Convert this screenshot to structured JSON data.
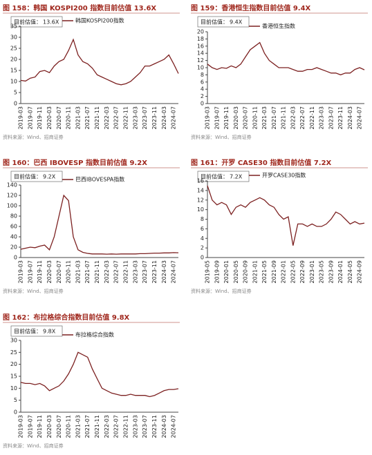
{
  "chart_data": [
    {
      "type": "line",
      "title": "图 158：韩国 KOSPI200 指数目前估值 13.6X",
      "annotation_label": "目前估值：",
      "annotation_value": "13.6X",
      "source": "资料来源：Wind、招商证券",
      "categories": [
        "2019-03",
        null,
        "2019-07",
        null,
        "2019-11",
        null,
        "2020-03",
        null,
        "2020-07",
        null,
        "2020-11",
        null,
        "2021-03",
        null,
        "2021-07",
        null,
        "2021-11",
        null,
        "2022-03",
        null,
        "2022-07",
        null,
        "2022-11",
        null,
        "2023-03",
        null,
        "2023-07",
        null,
        "2023-11",
        null,
        "2024-03",
        null,
        "2024-07",
        null
      ],
      "series": [
        {
          "name": "韩国KOSPI200指数",
          "color": "#7b1f1f",
          "values": [
            10.5,
            10.2,
            11.5,
            12,
            14.5,
            15,
            14,
            17,
            19,
            20,
            24,
            29,
            22,
            19,
            18,
            16,
            13,
            12,
            11,
            10,
            9,
            8.5,
            9,
            10,
            12,
            14,
            17,
            17,
            18,
            19,
            20,
            22,
            18,
            13.6
          ]
        }
      ],
      "ylim": [
        0,
        35
      ],
      "yticks": [
        0,
        5,
        10,
        15,
        20,
        25,
        30,
        35
      ]
    },
    {
      "type": "line",
      "title": "图 159：香港恒生指数目前估值 9.4X",
      "annotation_label": "目前估值：",
      "annotation_value": "9.4X",
      "source": "资料来源：Wind、招商证券",
      "categories": [
        "2019-03",
        null,
        "2019-07",
        null,
        "2019-11",
        null,
        "2020-03",
        null,
        "2020-07",
        null,
        "2020-11",
        null,
        "2021-03",
        null,
        "2021-07",
        null,
        "2021-11",
        null,
        "2022-03",
        null,
        "2022-07",
        null,
        "2022-11",
        null,
        "2023-03",
        null,
        "2023-07",
        null,
        "2023-11",
        null,
        "2024-03",
        null,
        "2024-07",
        null
      ],
      "series": [
        {
          "name": "香港恒生指数",
          "color": "#7b1f1f",
          "values": [
            11,
            10,
            9.5,
            10,
            9.8,
            10.5,
            10,
            11,
            13,
            15,
            16,
            17,
            14,
            12,
            11,
            10,
            10,
            10,
            9.5,
            9,
            9,
            9.5,
            9.5,
            10,
            9.5,
            9,
            8.5,
            8.5,
            8,
            8.5,
            8.5,
            9.5,
            10,
            9.4
          ]
        }
      ],
      "ylim": [
        0,
        20
      ],
      "yticks": [
        0,
        2,
        4,
        6,
        8,
        10,
        12,
        14,
        16,
        18,
        20
      ]
    },
    {
      "type": "line",
      "title": "图 160：巴西 IBOVESP 指数目前估值 9.2X",
      "annotation_label": "目前估值：",
      "annotation_value": "9.2X",
      "source": "资料来源：Wind、招商证券",
      "categories": [
        "2019-03",
        null,
        "2019-07",
        null,
        "2019-11",
        null,
        "2020-03",
        null,
        "2020-07",
        null,
        "2020-11",
        null,
        "2021-03",
        null,
        "2021-07",
        null,
        "2021-11",
        null,
        "2022-03",
        null,
        "2022-07",
        null,
        "2022-11",
        null,
        "2023-03",
        null,
        "2023-07",
        null,
        "2023-11",
        null,
        "2024-03",
        null,
        "2024-07",
        null
      ],
      "series": [
        {
          "name": "巴西IBOVESPA指数",
          "color": "#7b1f1f",
          "values": [
            16,
            18,
            20,
            19,
            22,
            24,
            15,
            40,
            80,
            120,
            110,
            40,
            15,
            10,
            8,
            7,
            7,
            7,
            6.5,
            7,
            6.5,
            7,
            7,
            7,
            7,
            7.5,
            7.5,
            8,
            8.5,
            8.5,
            9,
            9,
            9.5,
            9.2
          ]
        }
      ],
      "ylim": [
        0,
        140
      ],
      "yticks": [
        0,
        20,
        40,
        60,
        80,
        100,
        120,
        140
      ]
    },
    {
      "type": "line",
      "title": "图 161：开罗 CASE30 指数目前估值 7.2X",
      "annotation_label": "目前估值：",
      "annotation_value": "7.2X",
      "source": "资料来源：Wind、招商证券",
      "categories": [
        "2019-05",
        null,
        "2019-09",
        null,
        "2020-01",
        null,
        "2020-05",
        null,
        "2020-09",
        null,
        "2021-01",
        null,
        "2021-05",
        null,
        "2021-09",
        null,
        "2022-01",
        null,
        "2022-05",
        null,
        "2022-09",
        null,
        "2023-01",
        null,
        "2023-05",
        null,
        "2023-09",
        null,
        "2024-01",
        null,
        "2024-05",
        null,
        "2024-09",
        null
      ],
      "series": [
        {
          "name": "开罗CASE30指数",
          "color": "#7b1f1f",
          "values": [
            15,
            12,
            11,
            11.5,
            11,
            9,
            10.5,
            11,
            10.5,
            11.5,
            12,
            12.5,
            12,
            11,
            10.5,
            9,
            8,
            8.5,
            2.5,
            7,
            7,
            6.5,
            7,
            6.5,
            6.5,
            7,
            8,
            9.5,
            9,
            8,
            7,
            7.5,
            7,
            7.2
          ]
        }
      ],
      "ylim": [
        0,
        16
      ],
      "yticks": [
        0,
        2,
        4,
        6,
        8,
        10,
        12,
        14,
        16
      ]
    },
    {
      "type": "line",
      "title": "图 162：布拉格综合指数目前估值 9.8X",
      "annotation_label": "目前估值：",
      "annotation_value": "9.8X",
      "source": "资料来源：Wind、招商证券",
      "categories": [
        "2019-03",
        null,
        "2019-07",
        null,
        "2019-11",
        null,
        "2020-03",
        null,
        "2020-07",
        null,
        "2020-11",
        null,
        "2021-03",
        null,
        "2021-07",
        null,
        "2021-11",
        null,
        "2022-03",
        null,
        "2022-07",
        null,
        "2022-11",
        null,
        "2023-03",
        null,
        "2023-07",
        null,
        "2023-11",
        null,
        "2024-03",
        null,
        "2024-07",
        null
      ],
      "series": [
        {
          "name": "布拉格综合指数",
          "color": "#7b1f1f",
          "values": [
            12.5,
            12,
            12,
            11.5,
            12,
            11,
            9,
            10,
            11,
            13,
            16,
            20,
            25,
            24,
            23,
            18,
            14,
            10,
            9,
            8,
            7.5,
            7,
            7,
            7.5,
            7,
            7,
            7,
            6.5,
            7,
            8,
            9,
            9.5,
            9.5,
            9.8
          ]
        }
      ],
      "ylim": [
        0,
        30
      ],
      "yticks": [
        0,
        5,
        10,
        15,
        20,
        25,
        30
      ]
    }
  ]
}
